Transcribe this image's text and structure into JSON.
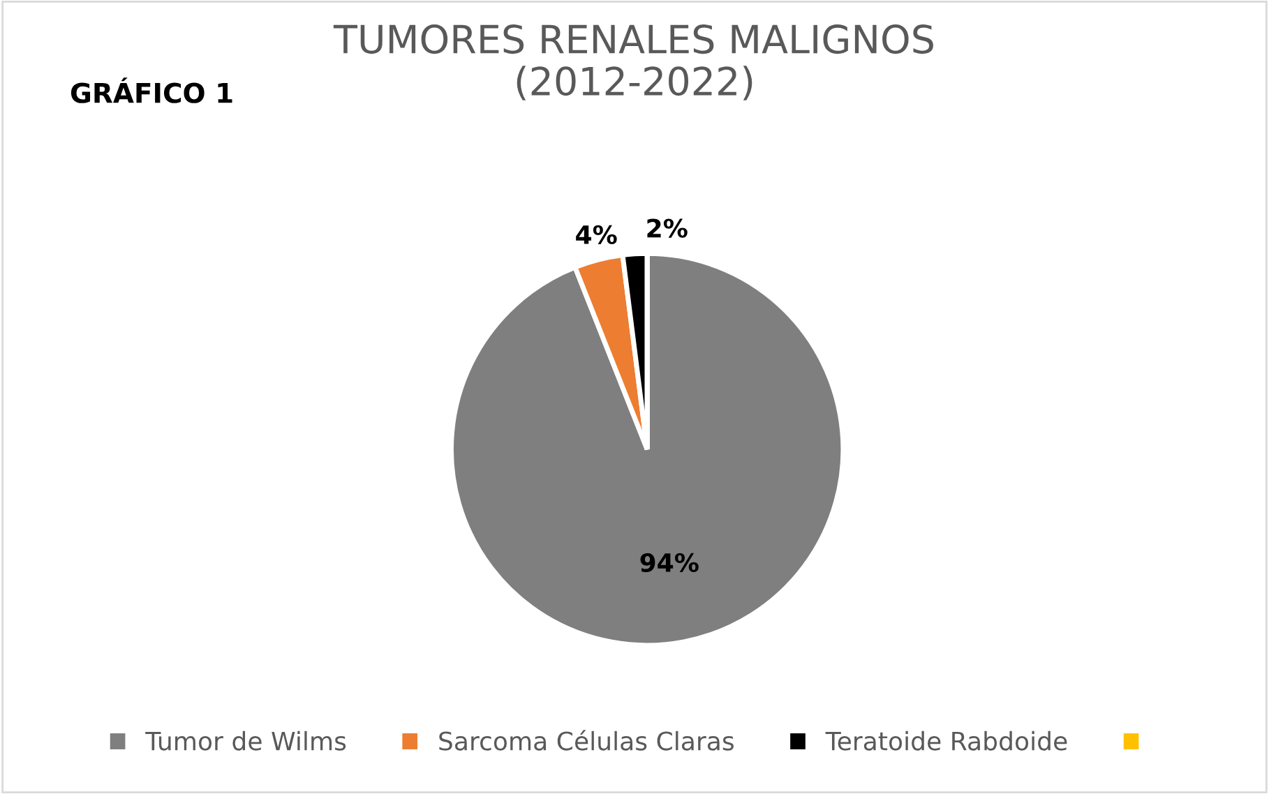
{
  "chart_data": {
    "type": "pie",
    "title": "TUMORES RENALES MALIGNOS\n(2012-2022)",
    "annotations": [
      "GRÁFICO 1"
    ],
    "categories": [
      "Tumor de Wilms",
      "Sarcoma Células Claras",
      "Teratoide Rabdoide",
      null
    ],
    "values": [
      94,
      4,
      2,
      0
    ],
    "colors": [
      "#7f7f7f",
      "#ed7d31",
      "#000000",
      "#ffc000"
    ],
    "value_labels": [
      "94%",
      "4%",
      "2%",
      null
    ],
    "legend": "bottom"
  }
}
